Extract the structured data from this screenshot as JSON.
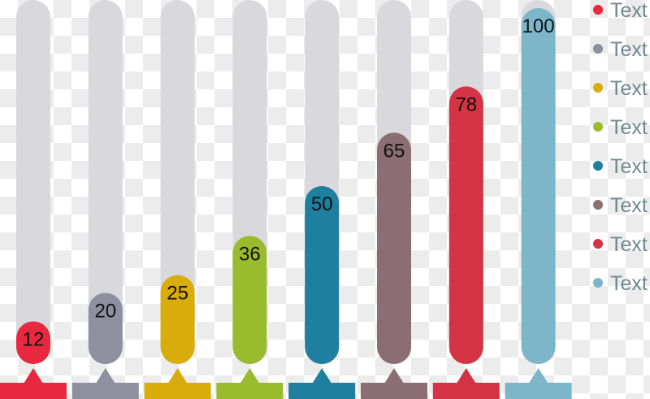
{
  "chart_data": {
    "type": "bar",
    "categories": [
      "Text",
      "Text",
      "Text",
      "Text",
      "Text",
      "Text",
      "Text",
      "Text"
    ],
    "values": [
      12,
      20,
      25,
      36,
      50,
      65,
      78,
      100
    ],
    "colors": [
      "#e8283e",
      "#8e8f9f",
      "#d8ac0a",
      "#9bbb2f",
      "#1e7f9e",
      "#8b6e74",
      "#d33343",
      "#7db5c9"
    ],
    "ylim": [
      0,
      100
    ],
    "legend": "right",
    "track_color": "#d9d9dd",
    "legend_text_color": "#6f8890"
  }
}
